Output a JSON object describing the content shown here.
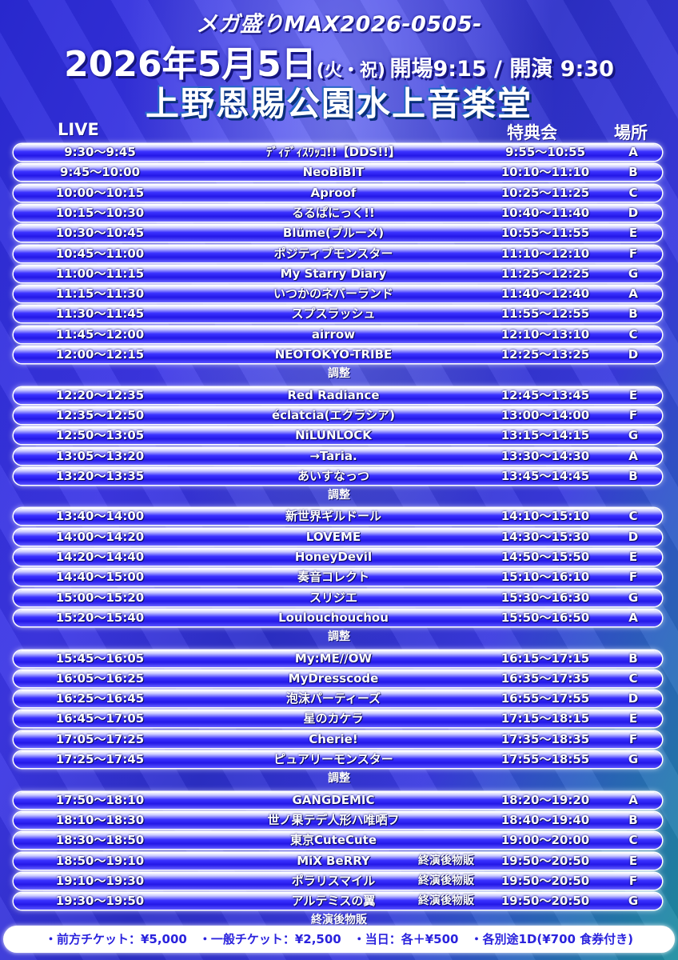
{
  "header": {
    "event_name": "メガ盛りMAX2026-0505-",
    "date_main": "2026年5月5日",
    "date_weekday": "(火・祝)",
    "times": "開場9:15 / 開演 9:30",
    "venue": "上野恩賜公園水上音楽堂"
  },
  "columns": {
    "live": "LIVE",
    "tokuten": "特典会",
    "basho": "場所"
  },
  "schedule": [
    {
      "live": "9:30〜9:45",
      "artist": "ﾃﾞｨﾃﾞｨｽﾜｯｺ!!【DDS!!】",
      "tokuten": "9:55〜10:55",
      "basho": "A",
      "note": ""
    },
    {
      "live": "9:45〜10:00",
      "artist": "NeoBiBIT",
      "tokuten": "10:10〜11:10",
      "basho": "B",
      "note": ""
    },
    {
      "live": "10:00〜10:15",
      "artist": "Aproof",
      "tokuten": "10:25〜11:25",
      "basho": "C",
      "note": ""
    },
    {
      "live": "10:15〜10:30",
      "artist": "るるぱにっく!!",
      "tokuten": "10:40〜11:40",
      "basho": "D",
      "note": ""
    },
    {
      "live": "10:30〜10:45",
      "artist": "Blüme(ブルーメ)",
      "tokuten": "10:55〜11:55",
      "basho": "E",
      "note": ""
    },
    {
      "live": "10:45〜11:00",
      "artist": "ポジティブモンスター",
      "tokuten": "11:10〜12:10",
      "basho": "F",
      "note": ""
    },
    {
      "live": "11:00〜11:15",
      "artist": "My Starry Diary",
      "tokuten": "11:25〜12:25",
      "basho": "G",
      "note": ""
    },
    {
      "live": "11:15〜11:30",
      "artist": "いつかのネバーランド",
      "tokuten": "11:40〜12:40",
      "basho": "A",
      "note": ""
    },
    {
      "live": "11:30〜11:45",
      "artist": "スプスラッシュ",
      "tokuten": "11:55〜12:55",
      "basho": "B",
      "note": ""
    },
    {
      "live": "11:45〜12:00",
      "artist": "airrow",
      "tokuten": "12:10〜13:10",
      "basho": "C",
      "note": ""
    },
    {
      "live": "12:00〜12:15",
      "artist": "NEOTOKYO-TRIBE",
      "tokuten": "12:25〜13:25",
      "basho": "D",
      "note": ""
    },
    {
      "sep": "調整"
    },
    {
      "live": "12:20〜12:35",
      "artist": "Red Radiance",
      "tokuten": "12:45〜13:45",
      "basho": "E",
      "note": ""
    },
    {
      "live": "12:35〜12:50",
      "artist": "éclatcia(エクラシア)",
      "tokuten": "13:00〜14:00",
      "basho": "F",
      "note": ""
    },
    {
      "live": "12:50〜13:05",
      "artist": "NiLUNLOCK",
      "tokuten": "13:15〜14:15",
      "basho": "G",
      "note": ""
    },
    {
      "live": "13:05〜13:20",
      "artist": "→Taria.",
      "tokuten": "13:30〜14:30",
      "basho": "A",
      "note": ""
    },
    {
      "live": "13:20〜13:35",
      "artist": "あいすなっつ",
      "tokuten": "13:45〜14:45",
      "basho": "B",
      "note": ""
    },
    {
      "sep": "調整"
    },
    {
      "live": "13:40〜14:00",
      "artist": "新世界ギルドール",
      "tokuten": "14:10〜15:10",
      "basho": "C",
      "note": ""
    },
    {
      "live": "14:00〜14:20",
      "artist": "LOVEME",
      "tokuten": "14:30〜15:30",
      "basho": "D",
      "note": ""
    },
    {
      "live": "14:20〜14:40",
      "artist": "HoneyDevil",
      "tokuten": "14:50〜15:50",
      "basho": "E",
      "note": ""
    },
    {
      "live": "14:40〜15:00",
      "artist": "奏音コレクト",
      "tokuten": "15:10〜16:10",
      "basho": "F",
      "note": ""
    },
    {
      "live": "15:00〜15:20",
      "artist": "スリジエ",
      "tokuten": "15:30〜16:30",
      "basho": "G",
      "note": ""
    },
    {
      "live": "15:20〜15:40",
      "artist": "Loulouchouchou",
      "tokuten": "15:50〜16:50",
      "basho": "A",
      "note": ""
    },
    {
      "sep": "調整"
    },
    {
      "live": "15:45〜16:05",
      "artist": "My:ME//OW",
      "tokuten": "16:15〜17:15",
      "basho": "B",
      "note": ""
    },
    {
      "live": "16:05〜16:25",
      "artist": "MyDresscode",
      "tokuten": "16:35〜17:35",
      "basho": "C",
      "note": ""
    },
    {
      "live": "16:25〜16:45",
      "artist": "泡沫パーティーズ",
      "tokuten": "16:55〜17:55",
      "basho": "D",
      "note": ""
    },
    {
      "live": "16:45〜17:05",
      "artist": "星のカケラ",
      "tokuten": "17:15〜18:15",
      "basho": "E",
      "note": ""
    },
    {
      "live": "17:05〜17:25",
      "artist": "Cherie!",
      "tokuten": "17:35〜18:35",
      "basho": "F",
      "note": ""
    },
    {
      "live": "17:25〜17:45",
      "artist": "ピュアリーモンスター",
      "tokuten": "17:55〜18:55",
      "basho": "G",
      "note": ""
    },
    {
      "sep": "調整"
    },
    {
      "live": "17:50〜18:10",
      "artist": "GANGDEMIC",
      "tokuten": "18:20〜19:20",
      "basho": "A",
      "note": ""
    },
    {
      "live": "18:10〜18:30",
      "artist": "世ノ果テデ人形ハ唯哂フ",
      "tokuten": "18:40〜19:40",
      "basho": "B",
      "note": ""
    },
    {
      "live": "18:30〜18:50",
      "artist": "東京CuteCute",
      "tokuten": "19:00〜20:00",
      "basho": "C",
      "note": ""
    },
    {
      "live": "18:50〜19:10",
      "artist": "MiX BeRRY",
      "tokuten": "19:50〜20:50",
      "basho": "E",
      "note": "終演後物販"
    },
    {
      "live": "19:10〜19:30",
      "artist": "ポラリスマイル",
      "tokuten": "19:50〜20:50",
      "basho": "F",
      "note": "終演後物販"
    },
    {
      "live": "19:30〜19:50",
      "artist": "アルテミスの翼",
      "tokuten": "19:50〜20:50",
      "basho": "G",
      "note": "終演後物販"
    },
    {
      "sep": "終演後物販"
    }
  ],
  "footer": {
    "text": "・前方チケット：¥5,000　・一般チケット：¥2,500　・当日：各＋¥500　・各別途1D(¥700 食券付き)"
  }
}
